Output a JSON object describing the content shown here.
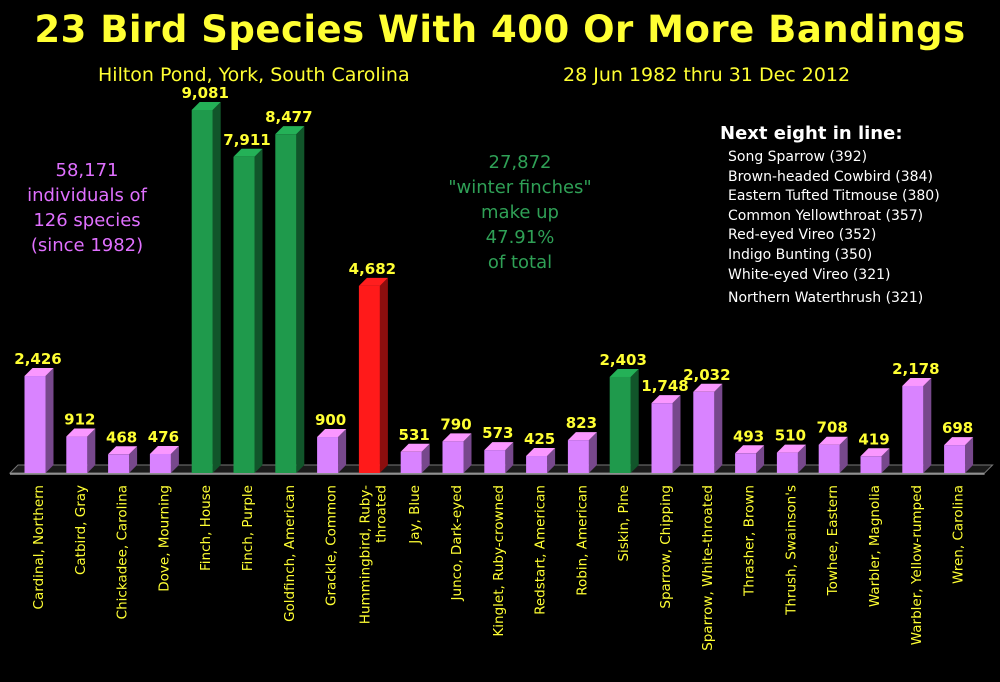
{
  "chart_data": {
    "type": "bar",
    "title": "23 Bird Species With 400 Or More Bandings",
    "subtitle_location": "Hilton Pond, York, South Carolina",
    "subtitle_dates": "28 Jun 1982 thru 31  Dec 2012",
    "categories": [
      "Cardinal, Northern",
      "Catbird, Gray",
      "Chickadee, Carolina",
      "Dove, Mourning",
      "Finch, House",
      "Finch, Purple",
      "Goldfinch, American",
      "Grackle, Common",
      "Hummingbird, Ruby-throated",
      "Jay, Blue",
      "Junco, Dark-eyed",
      "Kinglet, Ruby-crowned",
      "Redstart, American",
      "Robin, American",
      "Siskin, Pine",
      "Sparrow, Chipping",
      "Sparrow, White-throated",
      "Thrasher, Brown",
      "Thrush, Swainson's",
      "Towhee, Eastern",
      "Warbler, Magnolia",
      "Warbler, Yellow-rumped",
      "Wren, Carolina"
    ],
    "values": [
      2426,
      912,
      468,
      476,
      9081,
      7911,
      8477,
      900,
      4682,
      531,
      790,
      573,
      425,
      823,
      2403,
      1748,
      2032,
      493,
      510,
      708,
      419,
      2178,
      698
    ],
    "value_labels": [
      "2,426",
      "912",
      "468",
      "476",
      "9,081",
      "7,911",
      "8,477",
      "900",
      "4,682",
      "531",
      "790",
      "573",
      "425",
      "823",
      "2,403",
      "1,748",
      "2,032",
      "493",
      "510",
      "708",
      "419",
      "2,178",
      "698"
    ],
    "bar_groups": [
      "other",
      "other",
      "other",
      "other",
      "finch",
      "finch",
      "finch",
      "other",
      "hummingbird",
      "other",
      "other",
      "other",
      "other",
      "other",
      "finch",
      "other",
      "other",
      "other",
      "other",
      "other",
      "other",
      "other",
      "other"
    ],
    "group_colors": {
      "other": "#d983ff",
      "finch": "#1f9a4c",
      "hummingbird": "#ff1a1a"
    },
    "ylim": [
      0,
      9081
    ],
    "grid": false,
    "label_color": "#ffff33"
  },
  "notes": {
    "individuals": [
      "58,171",
      "individuals of",
      "126 species",
      "(since 1982)"
    ],
    "finches": [
      "27,872",
      "\"winter finches\"",
      "make up",
      "47.91%",
      "of total"
    ]
  },
  "next_eight": {
    "heading": "Next eight in line:",
    "items": [
      "Song Sparrow (392)",
      "Brown-headed Cowbird (384)",
      "Eastern Tufted Titmouse (380)",
      "Common Yellowthroat (357)",
      "Red-eyed Vireo (352)",
      "Indigo Bunting (350)",
      "White-eyed Vireo (321)",
      "Northern Waterthrush (321)"
    ]
  },
  "colors": {
    "background": "#000000",
    "title": "#ffff33",
    "individuals_note": "#e070ff",
    "finches_note": "#2fa056",
    "next_list": "#ffffff"
  }
}
